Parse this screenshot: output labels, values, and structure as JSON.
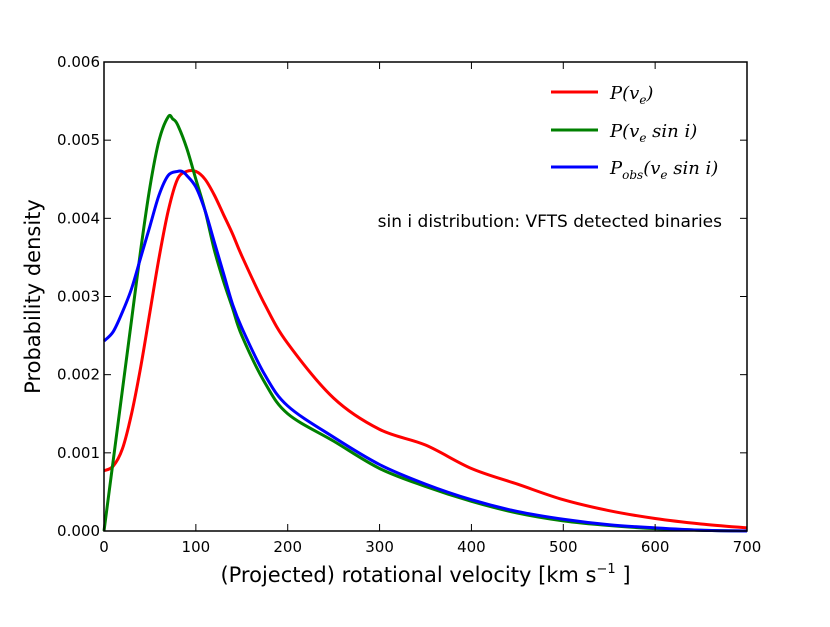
{
  "chart_data": {
    "type": "line",
    "xlabel": "(Projected) rotational velocity [km s",
    "xlabel_sup": "−1",
    "xlabel_suffix": " ]",
    "ylabel": "Probability density",
    "xlim": [
      0,
      700
    ],
    "ylim": [
      0,
      0.006
    ],
    "x_ticks": [
      0,
      100,
      200,
      300,
      400,
      500,
      600,
      700
    ],
    "x_tick_labels": [
      "0",
      "100",
      "200",
      "300",
      "400",
      "500",
      "600",
      "700"
    ],
    "y_ticks": [
      0,
      0.001,
      0.002,
      0.003,
      0.004,
      0.005,
      0.006
    ],
    "y_tick_labels": [
      "0.000",
      "0.001",
      "0.002",
      "0.003",
      "0.004",
      "0.005",
      "0.006"
    ],
    "grid": false,
    "legend_position": "top-right",
    "annotation": "sin i distribution: VFTS detected binaries",
    "series": [
      {
        "name": "P(v_e)",
        "legend_main": "P(v",
        "legend_sub": "e",
        "legend_tail": ")",
        "color": "#ff0000",
        "x": [
          0,
          10,
          20,
          30,
          40,
          50,
          60,
          70,
          80,
          90,
          100,
          110,
          120,
          130,
          140,
          150,
          175,
          200,
          250,
          300,
          350,
          400,
          450,
          500,
          550,
          600,
          650,
          700
        ],
        "y": [
          0.00077,
          0.00083,
          0.00105,
          0.0015,
          0.0021,
          0.0028,
          0.0035,
          0.0041,
          0.0045,
          0.0046,
          0.0046,
          0.0045,
          0.0043,
          0.00405,
          0.0038,
          0.00352,
          0.0029,
          0.0024,
          0.0017,
          0.0013,
          0.0011,
          0.0008,
          0.0006,
          0.0004,
          0.00026,
          0.00016,
          9e-05,
          4e-05
        ]
      },
      {
        "name": "P(v_e sin i)",
        "legend_main": "P(v",
        "legend_sub": "e",
        "legend_tail": " sin i)",
        "color": "#008000",
        "x": [
          0,
          10,
          20,
          30,
          40,
          50,
          60,
          70,
          75,
          80,
          90,
          100,
          110,
          120,
          130,
          140,
          150,
          175,
          200,
          250,
          300,
          350,
          400,
          450,
          500,
          550,
          600,
          650,
          700
        ],
        "y": [
          0.0,
          0.0009,
          0.0018,
          0.0027,
          0.0036,
          0.0044,
          0.005,
          0.0053,
          0.00527,
          0.0052,
          0.0049,
          0.0045,
          0.0041,
          0.0036,
          0.0032,
          0.00285,
          0.0025,
          0.0019,
          0.0015,
          0.00115,
          0.0008,
          0.00057,
          0.00038,
          0.00023,
          0.00013,
          7e-05,
          3e-05,
          1e-05,
          0.0
        ]
      },
      {
        "name": "P_obs(v_e sin i)",
        "legend_main": "P",
        "legend_sub": "obs",
        "legend_tail": "(v",
        "legend_sub2": "e",
        "legend_tail2": " sin i)",
        "color": "#0000ff",
        "x": [
          0,
          10,
          20,
          30,
          40,
          50,
          60,
          70,
          80,
          85,
          90,
          100,
          110,
          120,
          130,
          140,
          150,
          175,
          200,
          250,
          300,
          350,
          400,
          450,
          500,
          550,
          600,
          650,
          700
        ],
        "y": [
          0.00243,
          0.00255,
          0.0028,
          0.0031,
          0.0035,
          0.0039,
          0.0043,
          0.00455,
          0.0046,
          0.0046,
          0.00455,
          0.0044,
          0.0041,
          0.0037,
          0.0033,
          0.0029,
          0.0026,
          0.002,
          0.0016,
          0.0012,
          0.00085,
          0.0006,
          0.0004,
          0.00025,
          0.00015,
          8e-05,
          4e-05,
          1e-05,
          0.0
        ]
      }
    ]
  }
}
